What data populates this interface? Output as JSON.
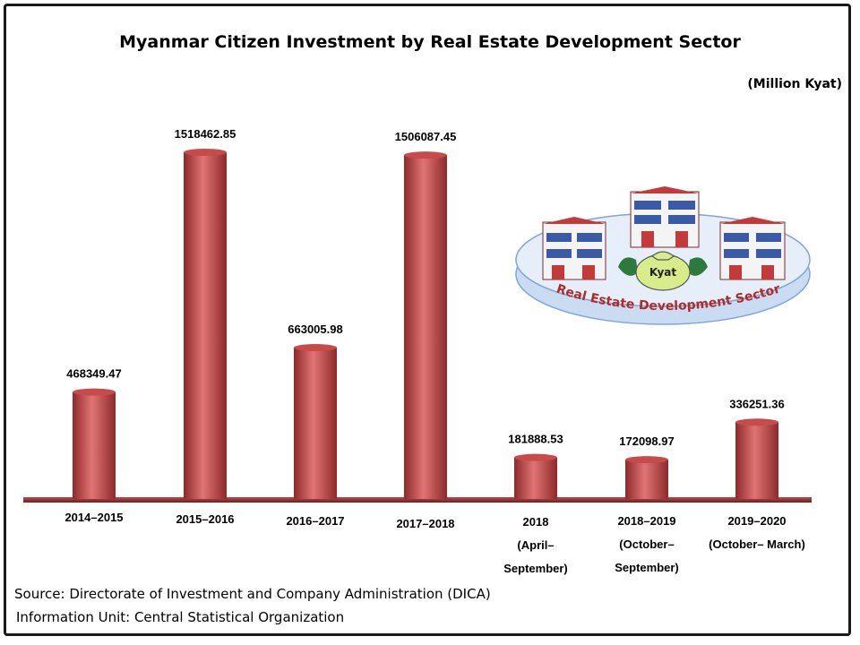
{
  "title": "Myanmar Citizen Investment by Real Estate Development Sector",
  "unit": "(Million Kyat)",
  "source": "Source:  Directorate of Investment and Company Administration (DICA)",
  "info_unit": "Information Unit:  Central Statistical Organization",
  "illustration": {
    "ring_label": "Real Estate Development Sector",
    "bag_label": "Kyat",
    "icons": [
      "building-icon",
      "money-bag-icon",
      "hand-icon"
    ]
  },
  "colors": {
    "bar": "#c94a4a",
    "bar_light": "#e88080",
    "bar_dark": "#8e2a2a",
    "axis": "#8a2e2e",
    "ring": "#cfe0f3"
  },
  "chart_data": {
    "type": "bar",
    "categories": [
      [
        "2014–2015"
      ],
      [
        "2015–2016"
      ],
      [
        "2016–2017"
      ],
      [
        "2017–2018"
      ],
      [
        "2018",
        "(April–",
        "September)"
      ],
      [
        "2018–2019",
        "(October–",
        "September)"
      ],
      [
        "2019–2020",
        "(October– March)"
      ]
    ],
    "values": [
      468349.47,
      1518462.85,
      663005.98,
      1506087.45,
      181888.53,
      172098.97,
      336251.36
    ],
    "labels": [
      "468349.47",
      "1518462.85",
      "663005.98",
      "1506087.45",
      "181888.53",
      "172098.97",
      "336251.36"
    ],
    "title": "Myanmar Citizen Investment by Real Estate Development Sector",
    "ylabel": "(Million Kyat)",
    "ylim": [
      0,
      1600000
    ],
    "grid": false,
    "legend": "none"
  }
}
